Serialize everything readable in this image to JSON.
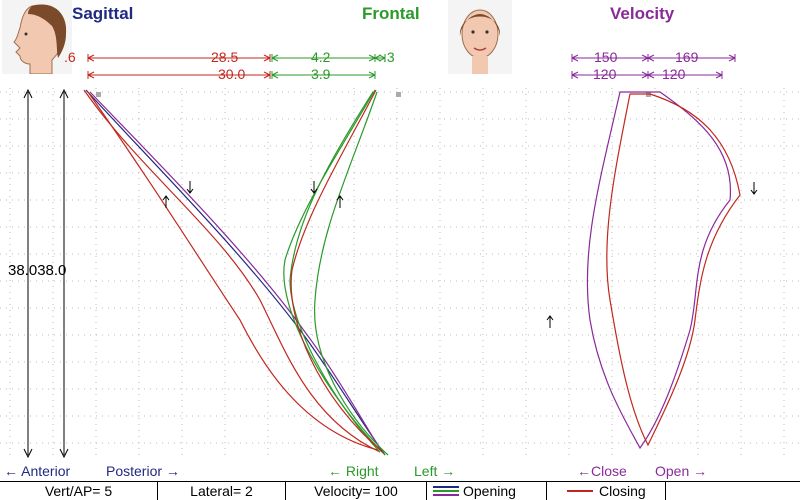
{
  "panels": {
    "sagittal": {
      "title": "Sagittal",
      "anterior": "← Anterior",
      "posterior": "Posterior →"
    },
    "frontal": {
      "title": "Frontal",
      "right": "← Right",
      "left": "Left →"
    },
    "velocity": {
      "title": "Velocity",
      "close": "←Close",
      "open": "Open →"
    }
  },
  "measurements": {
    "sag_top": "28.5",
    "sag_bottom": "30.0",
    "sag_left": ".6",
    "front_top": "4.2",
    "front_bottom": "3.9",
    "front_right": ".3",
    "vel_top_left": "150",
    "vel_top_right": "169",
    "vel_bot_left": "120",
    "vel_bot_right": "120",
    "vertical": "38.038.0"
  },
  "status_bar": {
    "vert_ap": "Vert/AP= 5",
    "lateral": "Lateral= 2",
    "velocity": "Velocity= 100",
    "opening": "Opening",
    "closing": "Closing"
  },
  "colors": {
    "sagittal": "#1f2a80",
    "frontal": "#2a9a2a",
    "velocity": "#8a2a9a",
    "closing": "#c0281e",
    "opening": "#1f2a80"
  },
  "icons": [
    "head-profile-icon",
    "face-front-icon"
  ],
  "chart_data": {
    "type": "line",
    "title": "",
    "xlabel": "",
    "ylabel": "",
    "series": [
      {
        "name": "Opening",
        "values": [
          28.5,
          4.2,
          150,
          169
        ]
      },
      {
        "name": "Closing",
        "values": [
          30.0,
          3.9,
          120,
          120
        ]
      }
    ],
    "vertical_opening": [
      38.0,
      38.0
    ],
    "grid": true
  }
}
